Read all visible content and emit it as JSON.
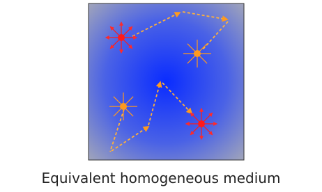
{
  "caption": "Equivalent homogeneous medium"
}
